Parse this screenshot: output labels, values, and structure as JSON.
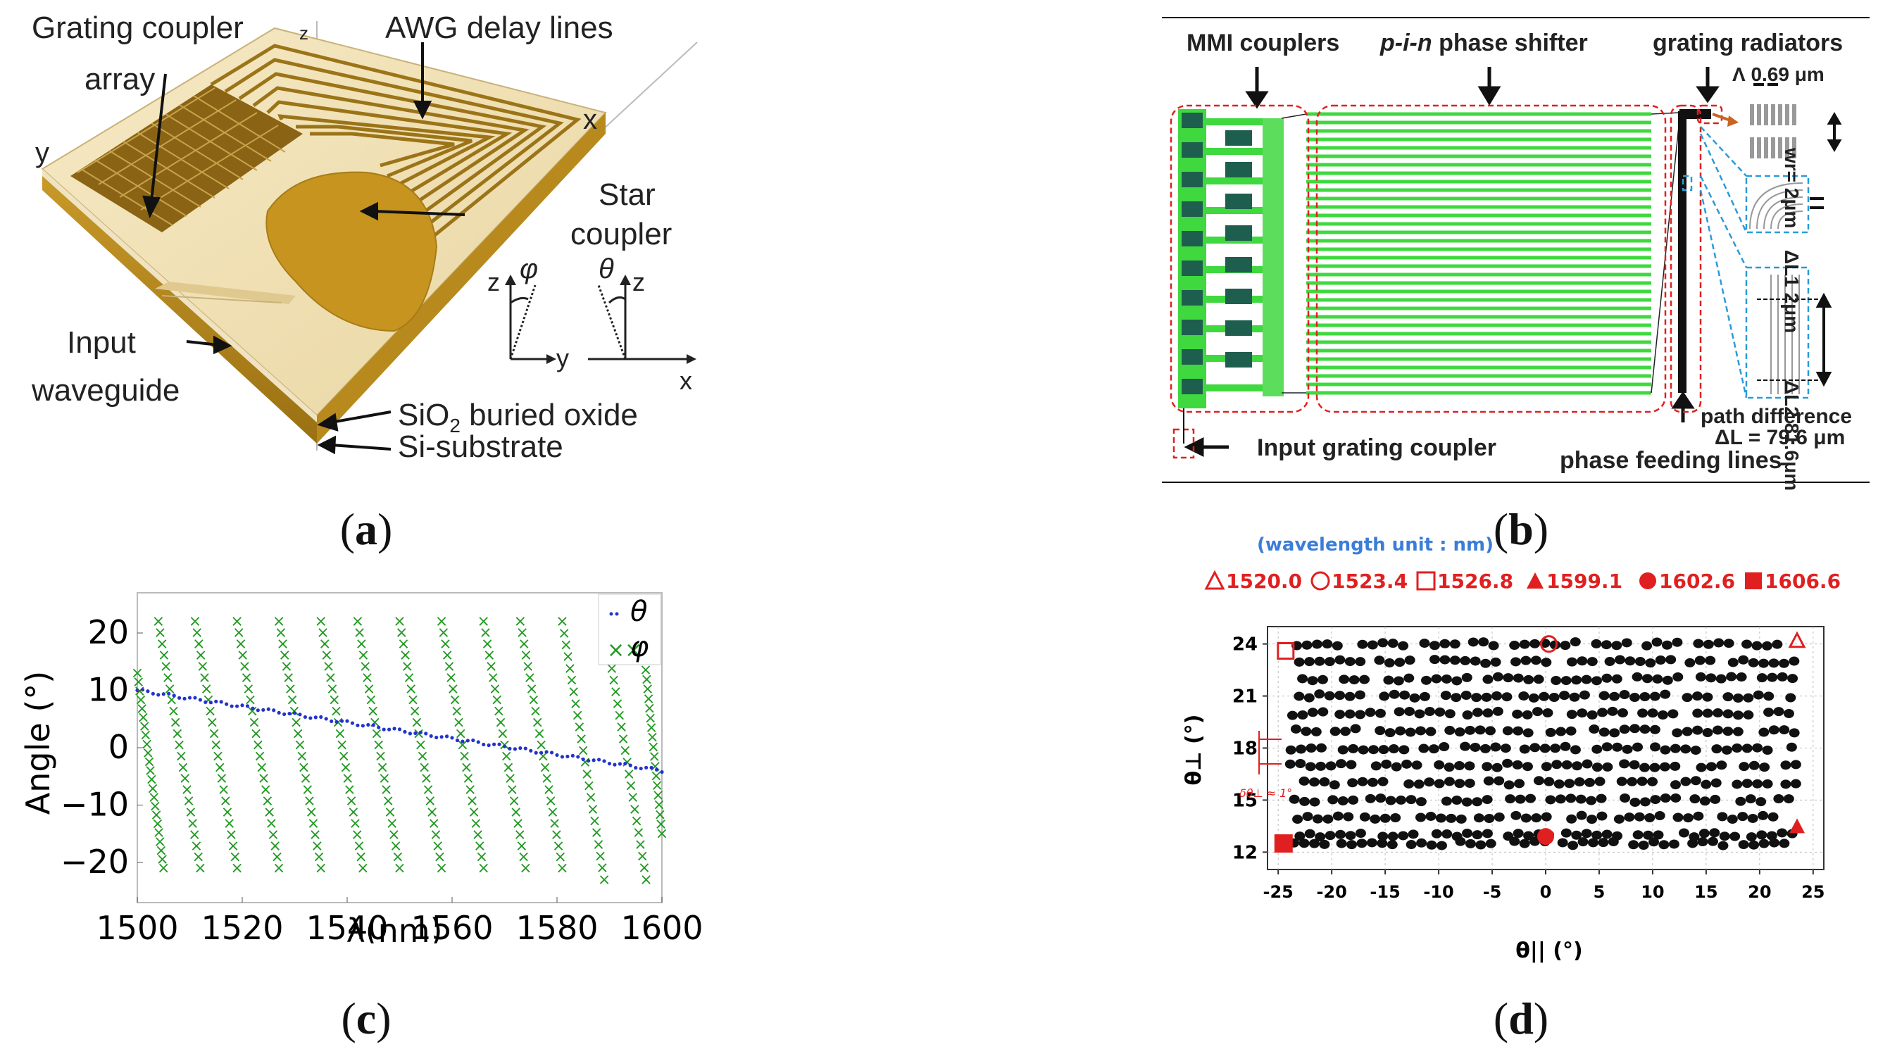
{
  "captions": {
    "a": "a",
    "b": "b",
    "c": "c",
    "d": "d"
  },
  "panel_a": {
    "labels": {
      "grating_coupler": "Grating coupler",
      "array": "array",
      "awg": "AWG delay lines",
      "star": "Star",
      "coupler": "coupler",
      "input": "Input",
      "waveguide": "waveguide",
      "sio2_a": "SiO",
      "sio2_sub": "2",
      "sio2_b": " buried oxide",
      "si_substrate": "Si-substrate",
      "axis_z": "z",
      "axis_x": "x",
      "axis_y": "y",
      "phi": "φ",
      "theta": "θ"
    }
  },
  "panel_b": {
    "labels": {
      "mmi": "MMI couplers",
      "pin_a": "p-i-n",
      "pin_b": " phase shifter",
      "grating_radiators": "grating radiators",
      "lambda": "Λ 0.69 μm",
      "wr": "wr= 2μm",
      "dl1": "ΔL1 2μm",
      "dl2": "ΔL2 81.6μm",
      "path_diff": "path difference",
      "delta_l": "ΔL = 79.6 μm",
      "input_gc": "Input grating coupler",
      "phase_feed": "phase feeding lines"
    }
  },
  "panel_c": {
    "legend": {
      "theta": "θ",
      "phi": "φ"
    },
    "xlabel": "λ(nm)",
    "ylabel": "Angle (°)",
    "xticks": [
      "1500",
      "1520",
      "1540",
      "1560",
      "1580",
      "1600"
    ],
    "yticks": [
      "20",
      "10",
      "0",
      "−10",
      "−20"
    ]
  },
  "panel_d": {
    "unit_note": "(wavelength unit : nm)",
    "legend": [
      "1520.0",
      "1523.4",
      "1526.8",
      "1599.1",
      "1602.6",
      "1606.6"
    ],
    "xlabel": "θ|| (°)",
    "ylabel": "θ⊥ (°)",
    "xticks": [
      "-25",
      "-20",
      "-15",
      "-10",
      "-5",
      "0",
      "5",
      "10",
      "15",
      "20",
      "25"
    ],
    "yticks": [
      "24",
      "21",
      "18",
      "15",
      "12"
    ],
    "delta_note": "δθ⊥ ≈ 1°"
  },
  "chart_data": [
    {
      "type": "scatter",
      "panel": "c",
      "xlabel": "λ(nm)",
      "ylabel": "Angle (°)",
      "xlim": [
        1500,
        1600
      ],
      "ylim": [
        -27,
        27
      ],
      "legend_position": "top-right",
      "series": [
        {
          "name": "θ",
          "color": "#2233cc",
          "x": [
            1500,
            1600
          ],
          "y": [
            10,
            -4
          ]
        },
        {
          "name": "φ",
          "color": "#229922",
          "lines": [
            {
              "x": [
                1500,
                1505
              ],
              "y": [
                13,
                -21
              ]
            },
            {
              "x": [
                1504,
                1512
              ],
              "y": [
                22,
                -21
              ]
            },
            {
              "x": [
                1511,
                1519
              ],
              "y": [
                22,
                -21
              ]
            },
            {
              "x": [
                1519,
                1527
              ],
              "y": [
                22,
                -21
              ]
            },
            {
              "x": [
                1527,
                1535
              ],
              "y": [
                22,
                -21
              ]
            },
            {
              "x": [
                1535,
                1543
              ],
              "y": [
                22,
                -21
              ]
            },
            {
              "x": [
                1542,
                1550
              ],
              "y": [
                22,
                -21
              ]
            },
            {
              "x": [
                1550,
                1558
              ],
              "y": [
                22,
                -21
              ]
            },
            {
              "x": [
                1558,
                1566
              ],
              "y": [
                22,
                -21
              ]
            },
            {
              "x": [
                1566,
                1574
              ],
              "y": [
                22,
                -21
              ]
            },
            {
              "x": [
                1573,
                1581
              ],
              "y": [
                22,
                -21
              ]
            },
            {
              "x": [
                1581,
                1589
              ],
              "y": [
                22,
                -23
              ]
            },
            {
              "x": [
                1589,
                1597
              ],
              "y": [
                22,
                -23
              ]
            },
            {
              "x": [
                1596,
                1600
              ],
              "y": [
                22,
                -15
              ]
            }
          ]
        }
      ]
    },
    {
      "type": "scatter",
      "panel": "d",
      "xlabel": "θ|| (°)",
      "ylabel": "θ⊥ (°)",
      "xlim": [
        -26,
        26
      ],
      "ylim": [
        11,
        25
      ],
      "grid": true,
      "rows_theta_perp": [
        24,
        23,
        22,
        21,
        20,
        19,
        18,
        17,
        16,
        15,
        14,
        13,
        12.5
      ],
      "markers": [
        {
          "label": "1520.0",
          "shape": "triangle-open",
          "x": 23.5,
          "y": 24.2
        },
        {
          "label": "1523.4",
          "shape": "circle-open",
          "x": 0.3,
          "y": 24
        },
        {
          "label": "1526.8",
          "shape": "square-open",
          "x": -24.3,
          "y": 23.6
        },
        {
          "label": "1599.1",
          "shape": "triangle-filled",
          "x": 23.5,
          "y": 13.5
        },
        {
          "label": "1602.6",
          "shape": "circle-filled",
          "x": 0,
          "y": 12.9
        },
        {
          "label": "1606.6",
          "shape": "square-filled",
          "x": -24.5,
          "y": 12.5
        }
      ]
    }
  ]
}
